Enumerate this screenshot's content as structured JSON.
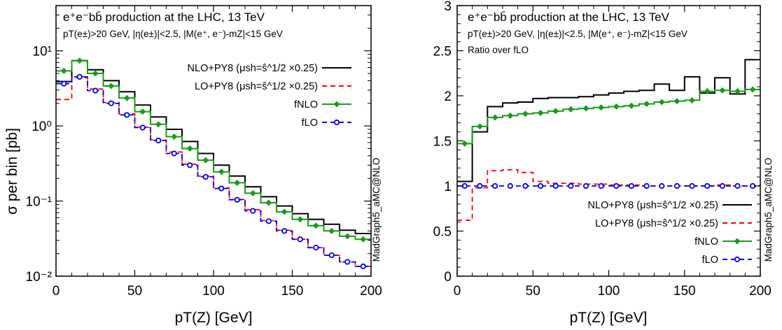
{
  "bin_edges": [
    0,
    10,
    20,
    30,
    40,
    50,
    60,
    70,
    80,
    90,
    100,
    110,
    120,
    130,
    140,
    150,
    160,
    170,
    180,
    190,
    200
  ],
  "watermark": "MadGraph5_aMC@NLO",
  "colors": {
    "nlo_py8": "#000000",
    "lo_py8": "#ff0000",
    "fnlo": "#1a9b1a",
    "flo": "#0000ee"
  },
  "chart_data": [
    {
      "type": "line",
      "title": "e⁺e⁻bb̄ production at the LHC, 13 TeV",
      "subtitle": "pT(e±)>20 GeV, |η(e±)|<2.5, |M(e⁺, e⁻)-mZ|<15 GeV",
      "xlabel": "pT(Z) [GeV]",
      "ylabel": "σ per bin [pb]",
      "xlim": [
        0,
        200
      ],
      "ylim": [
        0.01,
        40
      ],
      "yscale": "log",
      "x_ticks": [
        "0",
        "50",
        "100",
        "150",
        "200"
      ],
      "y_ticks": [
        "10⁻²",
        "10⁻¹",
        "10⁰",
        "10¹"
      ],
      "legend_position": "top-right",
      "series": [
        {
          "name": "NLO+PY8 (μsh=ŝ^1/2 ×0.25)",
          "style": "histogram-solid",
          "color": "#000000",
          "values": [
            3.9,
            7.4,
            5.6,
            4.0,
            2.85,
            1.9,
            1.32,
            0.9,
            0.62,
            0.43,
            0.3,
            0.215,
            0.155,
            0.114,
            0.086,
            0.068,
            0.057,
            0.049,
            0.041,
            0.037
          ]
        },
        {
          "name": "LO+PY8 (μsh=ŝ^1/2 ×0.25)",
          "style": "histogram-dashed",
          "color": "#ff0000",
          "values": [
            2.25,
            4.4,
            3.1,
            2.05,
            1.45,
            0.96,
            0.65,
            0.45,
            0.31,
            0.215,
            0.15,
            0.105,
            0.077,
            0.055,
            0.041,
            0.031,
            0.024,
            0.019,
            0.0155,
            0.0135
          ]
        },
        {
          "name": "fNLO",
          "style": "histogram-solid-markers",
          "marker": "filled-diamond",
          "color": "#1a9b1a",
          "values": [
            5.4,
            7.4,
            5.0,
            3.4,
            2.35,
            1.55,
            1.05,
            0.72,
            0.5,
            0.35,
            0.245,
            0.175,
            0.127,
            0.095,
            0.072,
            0.057,
            0.047,
            0.04,
            0.034,
            0.031
          ]
        },
        {
          "name": "fLO",
          "style": "histogram-dashed-markers",
          "marker": "open-circle",
          "color": "#0000ee",
          "values": [
            3.65,
            4.5,
            2.95,
            2.0,
            1.4,
            0.95,
            0.64,
            0.43,
            0.3,
            0.21,
            0.147,
            0.104,
            0.074,
            0.054,
            0.04,
            0.031,
            0.024,
            0.019,
            0.0155,
            0.0135
          ]
        }
      ]
    },
    {
      "type": "line",
      "title": "e⁺e⁻bb̄ production at the LHC, 13 TeV",
      "subtitle": "pT(e±)>20 GeV, |η(e±)|<2.5, |M(e⁺, e⁻)-mZ|<15 GeV",
      "note": "Ratio over fLO",
      "xlabel": "pT(Z) [GeV]",
      "ylabel": "",
      "xlim": [
        0,
        200
      ],
      "ylim": [
        0,
        3
      ],
      "x_ticks": [
        "0",
        "50",
        "100",
        "150",
        "200"
      ],
      "y_ticks": [
        "0",
        "0.5",
        "1",
        "1.5",
        "2",
        "2.5",
        "3"
      ],
      "legend_position": "bottom-right",
      "series": [
        {
          "name": "NLO+PY8 (μsh=ŝ^1/2 ×0.25)",
          "style": "histogram-solid",
          "color": "#000000",
          "values": [
            1.05,
            1.6,
            1.88,
            1.92,
            1.93,
            1.97,
            1.98,
            1.98,
            1.99,
            2.01,
            2.03,
            2.05,
            2.06,
            2.13,
            2.06,
            2.21,
            2.03,
            2.2,
            2.02,
            2.4
          ]
        },
        {
          "name": "LO+PY8 (μsh=ŝ^1/2 ×0.25)",
          "style": "histogram-dashed",
          "color": "#ff0000",
          "values": [
            0.62,
            0.98,
            1.17,
            1.18,
            1.15,
            1.05,
            1.03,
            1.03,
            1.02,
            1.02,
            1.01,
            1.01,
            1.0,
            1.0,
            1.0,
            1.0,
            1.0,
            1.01,
            1.0,
            1.0
          ]
        },
        {
          "name": "fNLO",
          "style": "histogram-solid-markers",
          "marker": "filled-diamond",
          "color": "#1a9b1a",
          "values": [
            1.47,
            1.66,
            1.76,
            1.78,
            1.8,
            1.81,
            1.83,
            1.85,
            1.86,
            1.87,
            1.88,
            1.89,
            1.91,
            1.93,
            1.94,
            1.95,
            2.05,
            2.06,
            2.05,
            2.07
          ]
        },
        {
          "name": "fLO",
          "style": "histogram-dashed-markers",
          "marker": "open-circle",
          "color": "#0000ee",
          "values": [
            1,
            1,
            1,
            1,
            1,
            1,
            1,
            1,
            1,
            1,
            1,
            1,
            1,
            1,
            1,
            1,
            1,
            1,
            1,
            1
          ]
        }
      ]
    }
  ]
}
